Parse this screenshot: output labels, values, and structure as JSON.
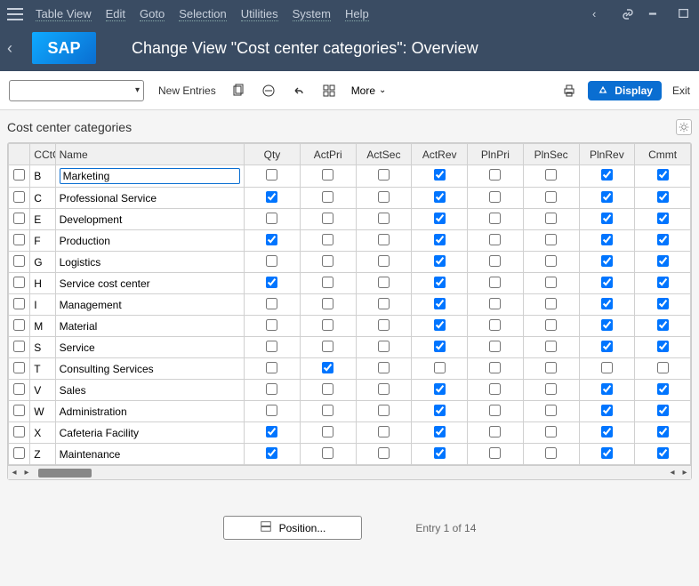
{
  "menubar": {
    "items": [
      "Table View",
      "Edit",
      "Goto",
      "Selection",
      "Utilities",
      "System",
      "Help"
    ]
  },
  "title": "Change View \"Cost center categories\": Overview",
  "logo_text": "SAP",
  "toolbar": {
    "new_entries": "New Entries",
    "more": "More",
    "display": "Display",
    "exit": "Exit"
  },
  "section_title": "Cost center categories",
  "columns": [
    "CCtC",
    "Name",
    "Qty",
    "ActPri",
    "ActSec",
    "ActRev",
    "PlnPri",
    "PlnSec",
    "PlnRev",
    "Cmmt"
  ],
  "rows": [
    {
      "code": "B",
      "name": "Marketing",
      "c": [
        false,
        false,
        false,
        true,
        false,
        false,
        true,
        true
      ]
    },
    {
      "code": "C",
      "name": "Professional Service",
      "c": [
        true,
        false,
        false,
        true,
        false,
        false,
        true,
        true
      ]
    },
    {
      "code": "E",
      "name": "Development",
      "c": [
        false,
        false,
        false,
        true,
        false,
        false,
        true,
        true
      ]
    },
    {
      "code": "F",
      "name": "Production",
      "c": [
        true,
        false,
        false,
        true,
        false,
        false,
        true,
        true
      ]
    },
    {
      "code": "G",
      "name": "Logistics",
      "c": [
        false,
        false,
        false,
        true,
        false,
        false,
        true,
        true
      ]
    },
    {
      "code": "H",
      "name": "Service cost center",
      "c": [
        true,
        false,
        false,
        true,
        false,
        false,
        true,
        true
      ]
    },
    {
      "code": "I",
      "name": "Management",
      "c": [
        false,
        false,
        false,
        true,
        false,
        false,
        true,
        true
      ]
    },
    {
      "code": "M",
      "name": "Material",
      "c": [
        false,
        false,
        false,
        true,
        false,
        false,
        true,
        true
      ]
    },
    {
      "code": "S",
      "name": "Service",
      "c": [
        false,
        false,
        false,
        true,
        false,
        false,
        true,
        true
      ]
    },
    {
      "code": "T",
      "name": "Consulting Services",
      "c": [
        false,
        true,
        false,
        false,
        false,
        false,
        false,
        false
      ]
    },
    {
      "code": "V",
      "name": "Sales",
      "c": [
        false,
        false,
        false,
        true,
        false,
        false,
        true,
        true
      ]
    },
    {
      "code": "W",
      "name": "Administration",
      "c": [
        false,
        false,
        false,
        true,
        false,
        false,
        true,
        true
      ]
    },
    {
      "code": "X",
      "name": "Cafeteria Facility",
      "c": [
        true,
        false,
        false,
        true,
        false,
        false,
        true,
        true
      ]
    },
    {
      "code": "Z",
      "name": "Maintenance",
      "c": [
        true,
        false,
        false,
        true,
        false,
        false,
        true,
        true
      ]
    }
  ],
  "footer": {
    "position_btn": "Position...",
    "entry_info": "Entry 1 of 14"
  },
  "colors": {
    "header_bg": "#3a4c63",
    "accent": "#0a6ed1"
  }
}
